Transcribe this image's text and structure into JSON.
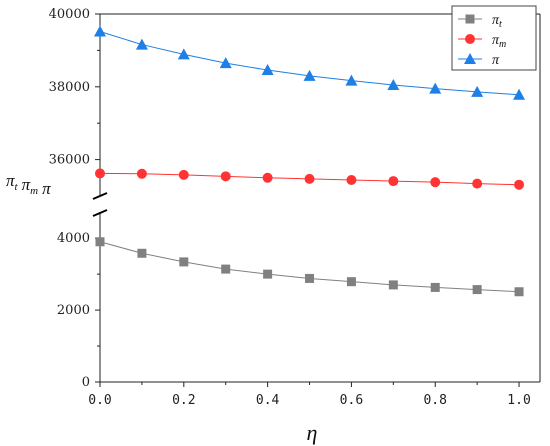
{
  "chart_data": {
    "type": "line",
    "xlabel": "η",
    "ylabel_parts": [
      {
        "base": "π",
        "sub": "t"
      },
      {
        "base": "π",
        "sub": "m"
      },
      {
        "base": "π",
        "sub": ""
      }
    ],
    "x": [
      0.0,
      0.1,
      0.2,
      0.3,
      0.4,
      0.5,
      0.6,
      0.7,
      0.8,
      0.9,
      1.0
    ],
    "xlim": [
      0.0,
      1.05
    ],
    "x_ticks": [
      0.0,
      0.2,
      0.4,
      0.6,
      0.8,
      1.0
    ],
    "x_tick_labels": [
      "0.0",
      "0.2",
      "0.4",
      "0.6",
      "0.8",
      "1.0"
    ],
    "y_axis_break": true,
    "y_segments": {
      "lower": {
        "range": [
          0,
          4700
        ],
        "ticks": [
          0,
          2000,
          4000
        ],
        "tick_labels": [
          "0",
          "2000",
          "4000"
        ]
      },
      "upper": {
        "range": [
          35000,
          40000
        ],
        "ticks": [
          36000,
          38000,
          40000
        ],
        "tick_labels": [
          "36000",
          "38000",
          "40000"
        ]
      }
    },
    "legend_position": "top-right",
    "series": [
      {
        "name_base": "π",
        "name_sub": "t",
        "color": "#808080",
        "marker": "square",
        "values": [
          3900,
          3580,
          3340,
          3140,
          3000,
          2880,
          2790,
          2700,
          2630,
          2570,
          2510
        ]
      },
      {
        "name_base": "π",
        "name_sub": "m",
        "color": "#ff3333",
        "marker": "circle",
        "values": [
          35620,
          35610,
          35580,
          35540,
          35500,
          35470,
          35440,
          35410,
          35380,
          35340,
          35310
        ]
      },
      {
        "name_base": "π",
        "name_sub": "",
        "color": "#1e7fe6",
        "marker": "triangle",
        "values": [
          39520,
          39160,
          38890,
          38650,
          38460,
          38300,
          38170,
          38050,
          37950,
          37860,
          37780
        ]
      }
    ]
  }
}
